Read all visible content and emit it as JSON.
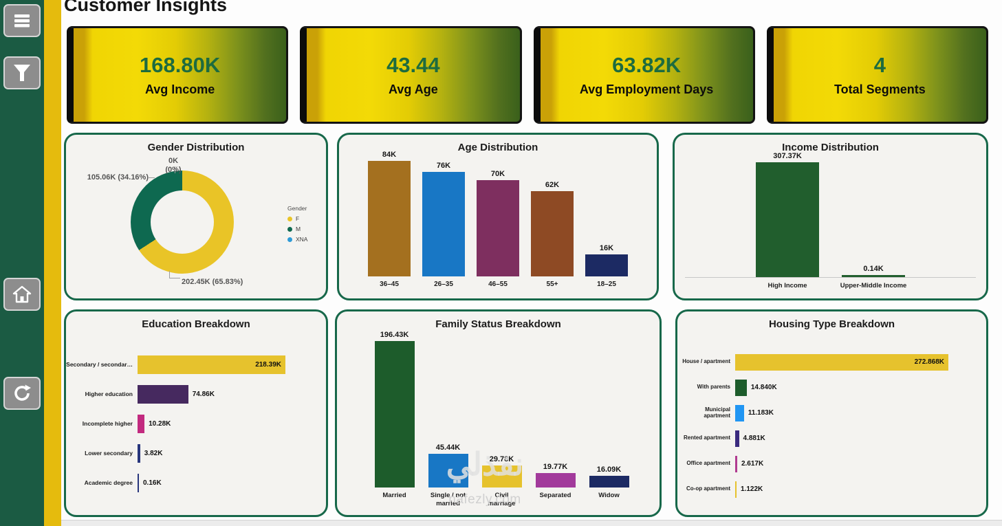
{
  "page": {
    "title": "Customer Insights"
  },
  "sidebar": {
    "buttons": [
      {
        "icon": "menu-icon"
      },
      {
        "icon": "filter-icon"
      },
      {
        "icon": "home-icon"
      },
      {
        "icon": "refresh-icon"
      }
    ]
  },
  "kpis": [
    {
      "value": "168.80K",
      "label": "Avg Income"
    },
    {
      "value": "43.44",
      "label": "Avg Age"
    },
    {
      "value": "63.82K",
      "label": "Avg Employment Days"
    },
    {
      "value": "4",
      "label": "Total Segments"
    }
  ],
  "chart_data": [
    {
      "id": "gender",
      "type": "pie",
      "title": "Gender Distribution",
      "legend_title": "Gender",
      "legend_position": "right",
      "slices": [
        {
          "name": "F",
          "pct": 65.83,
          "color": "#e9c427",
          "callout": "202.45K (65.83%)"
        },
        {
          "name": "M",
          "pct": 34.16,
          "color": "#0e6950",
          "callout": "105.06K (34.16%)"
        },
        {
          "name": "XNA",
          "pct": 0.01,
          "color": "#2e9bd6",
          "callout": "0K (0%)"
        }
      ]
    },
    {
      "id": "age",
      "type": "bar",
      "title": "Age Distribution",
      "categories": [
        "36–45",
        "26–35",
        "46–55",
        "55+",
        "18–25"
      ],
      "values": [
        84,
        76,
        70,
        62,
        16
      ],
      "value_labels": [
        "84K",
        "76K",
        "70K",
        "62K",
        "16K"
      ],
      "colors": [
        "#a4701f",
        "#1877c5",
        "#7e2f5f",
        "#8e4a24",
        "#1c2a63"
      ]
    },
    {
      "id": "income",
      "type": "bar",
      "title": "Income Distribution",
      "categories": [
        "High Income",
        "Upper-Middle Income"
      ],
      "values": [
        307.37,
        0.14
      ],
      "value_labels": [
        "307.37K",
        "0.14K"
      ],
      "colors": [
        "#215e2d",
        "#215e2d"
      ]
    },
    {
      "id": "education",
      "type": "bar",
      "orientation": "horizontal",
      "title": "Education Breakdown",
      "categories": [
        "Secondary / secondar…",
        "Higher education",
        "Incomplete higher",
        "Lower secondary",
        "Academic degree"
      ],
      "values": [
        218.39,
        74.86,
        10.28,
        3.82,
        0.16
      ],
      "value_labels": [
        "218.39K",
        "74.86K",
        "10.28K",
        "3.82K",
        "0.16K"
      ],
      "colors": [
        "#e6c22d",
        "#46295f",
        "#c22a7f",
        "#27357c",
        "#27357c"
      ]
    },
    {
      "id": "family",
      "type": "bar",
      "title": "Family Status Breakdown",
      "categories": [
        "Married",
        "Single / not married",
        "Civil marriage",
        "Separated",
        "Widow"
      ],
      "values": [
        196.43,
        45.44,
        29.78,
        19.77,
        16.09
      ],
      "value_labels": [
        "196.43K",
        "45.44K",
        "29.78K",
        "19.77K",
        "16.09K"
      ],
      "colors": [
        "#1d5c2b",
        "#1877c5",
        "#e6c22d",
        "#a23a9b",
        "#1c2a63"
      ]
    },
    {
      "id": "housing",
      "type": "bar",
      "orientation": "horizontal",
      "title": "Housing Type Breakdown",
      "categories": [
        "House / apartment",
        "With parents",
        "Municipal apartment",
        "Rented apartment",
        "Office apartment",
        "Co-op apartment"
      ],
      "values": [
        272.868,
        14.84,
        11.183,
        4.881,
        2.617,
        1.122
      ],
      "value_labels": [
        "272.868K",
        "14.840K",
        "11.183K",
        "4.881K",
        "2.617K",
        "1.122K"
      ],
      "colors": [
        "#e6c22d",
        "#1d5c2b",
        "#2196f3",
        "#3a2a7e",
        "#b03a90",
        "#e6c22d"
      ]
    }
  ],
  "watermark": {
    "brand_ar": "نفذلي",
    "domain": "nafezly.com"
  },
  "colors": {
    "sidebar_green": "#1b5b43",
    "strip_yellow": "#e5bb0d",
    "panel_border": "#17684a",
    "kpi_value_green": "#1d6b3f",
    "kpi_gradient_start": "#f3da06",
    "kpi_gradient_end": "#3a601b"
  }
}
